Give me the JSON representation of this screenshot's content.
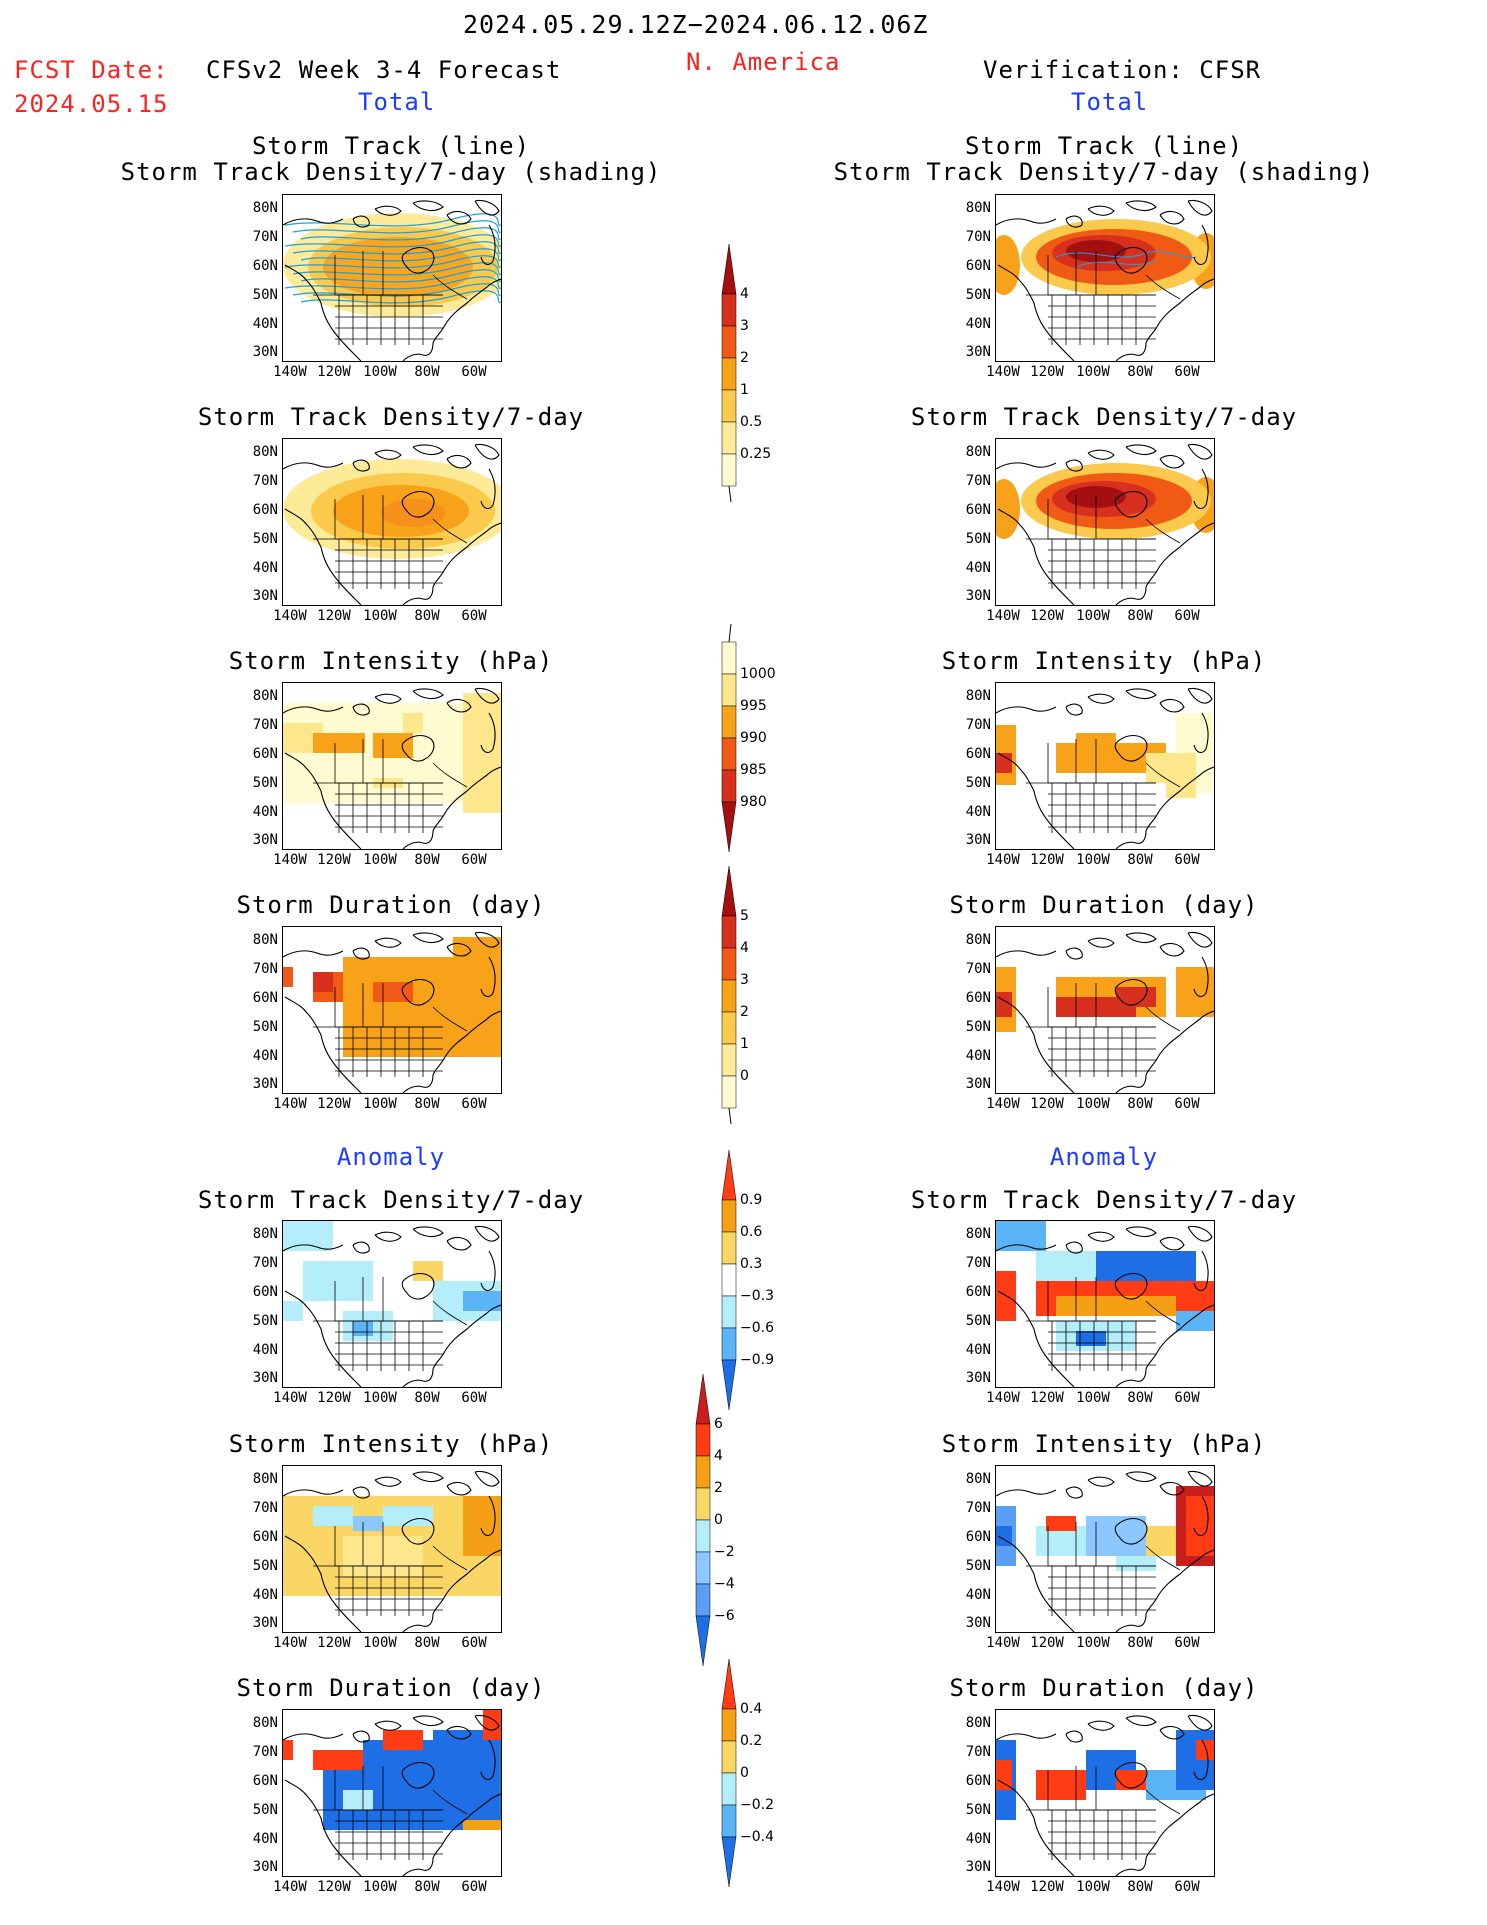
{
  "header": {
    "date_range": "2024.05.29.12Z−2024.06.12.06Z",
    "region": "N. America",
    "fcst_label": "FCST Date:",
    "fcst_date": "2024.05.15",
    "left_title": "CFSv2 Week 3-4 Forecast",
    "right_title": "Verification: CFSR",
    "total_left": "Total",
    "total_right": "Total",
    "anomaly_left": "Anomaly",
    "anomaly_right": "Anomaly"
  },
  "panel_titles": {
    "track_line": "Storm Track (line)",
    "track_shading": "Storm Track Density/7-day (shading)",
    "density": "Storm Track Density/7-day",
    "intensity": "Storm Intensity (hPa)",
    "duration": "Storm Duration (day)"
  },
  "axes": {
    "lat_labels": [
      "80N",
      "70N",
      "60N",
      "50N",
      "40N",
      "30N"
    ],
    "lon_labels": [
      "140W",
      "120W",
      "100W",
      "80W",
      "60W"
    ]
  },
  "colorbars": {
    "density_total": {
      "labels": [
        "4",
        "3",
        "2",
        "1",
        "0.5",
        "0.25"
      ],
      "colors": [
        "#a50f0f",
        "#d7301f",
        "#f05a14",
        "#f8a21a",
        "#fbc94b",
        "#fdeb9a",
        "#fffbd0"
      ]
    },
    "intensity_total": {
      "labels": [
        "1000",
        "995",
        "990",
        "985",
        "980"
      ],
      "colors": [
        "#fffbd0",
        "#fde68c",
        "#f8a21a",
        "#f05a14",
        "#d7301f",
        "#a50f0f"
      ]
    },
    "duration_total": {
      "labels": [
        "5",
        "4",
        "3",
        "2",
        "1",
        "0"
      ],
      "colors": [
        "#a50f0f",
        "#d7301f",
        "#f05a14",
        "#f8a21a",
        "#fbc94b",
        "#fdeb9a",
        "#fffbd0"
      ]
    },
    "density_anom": {
      "labels": [
        "0.9",
        "0.6",
        "0.3",
        "−0.3",
        "−0.6",
        "−0.9"
      ],
      "colors": [
        "#ff3c14",
        "#f5a014",
        "#fad764",
        "#ffffff",
        "#b4eefa",
        "#5ab4f5",
        "#1e6ee6"
      ]
    },
    "intensity_anom": {
      "labels": [
        "6",
        "4",
        "2",
        "0",
        "−2",
        "−4",
        "−6"
      ],
      "colors": [
        "#c81e1e",
        "#ff3c14",
        "#f5a014",
        "#fad764",
        "#b4eefa",
        "#8cc8ff",
        "#5a9ff5",
        "#1e6ee6"
      ]
    },
    "duration_anom": {
      "labels": [
        "0.4",
        "0.2",
        "0",
        "−0.2",
        "−0.4"
      ],
      "colors": [
        "#ff3c14",
        "#f5a014",
        "#fad764",
        "#b4eefa",
        "#5ab4f5",
        "#1e6ee6"
      ]
    }
  }
}
